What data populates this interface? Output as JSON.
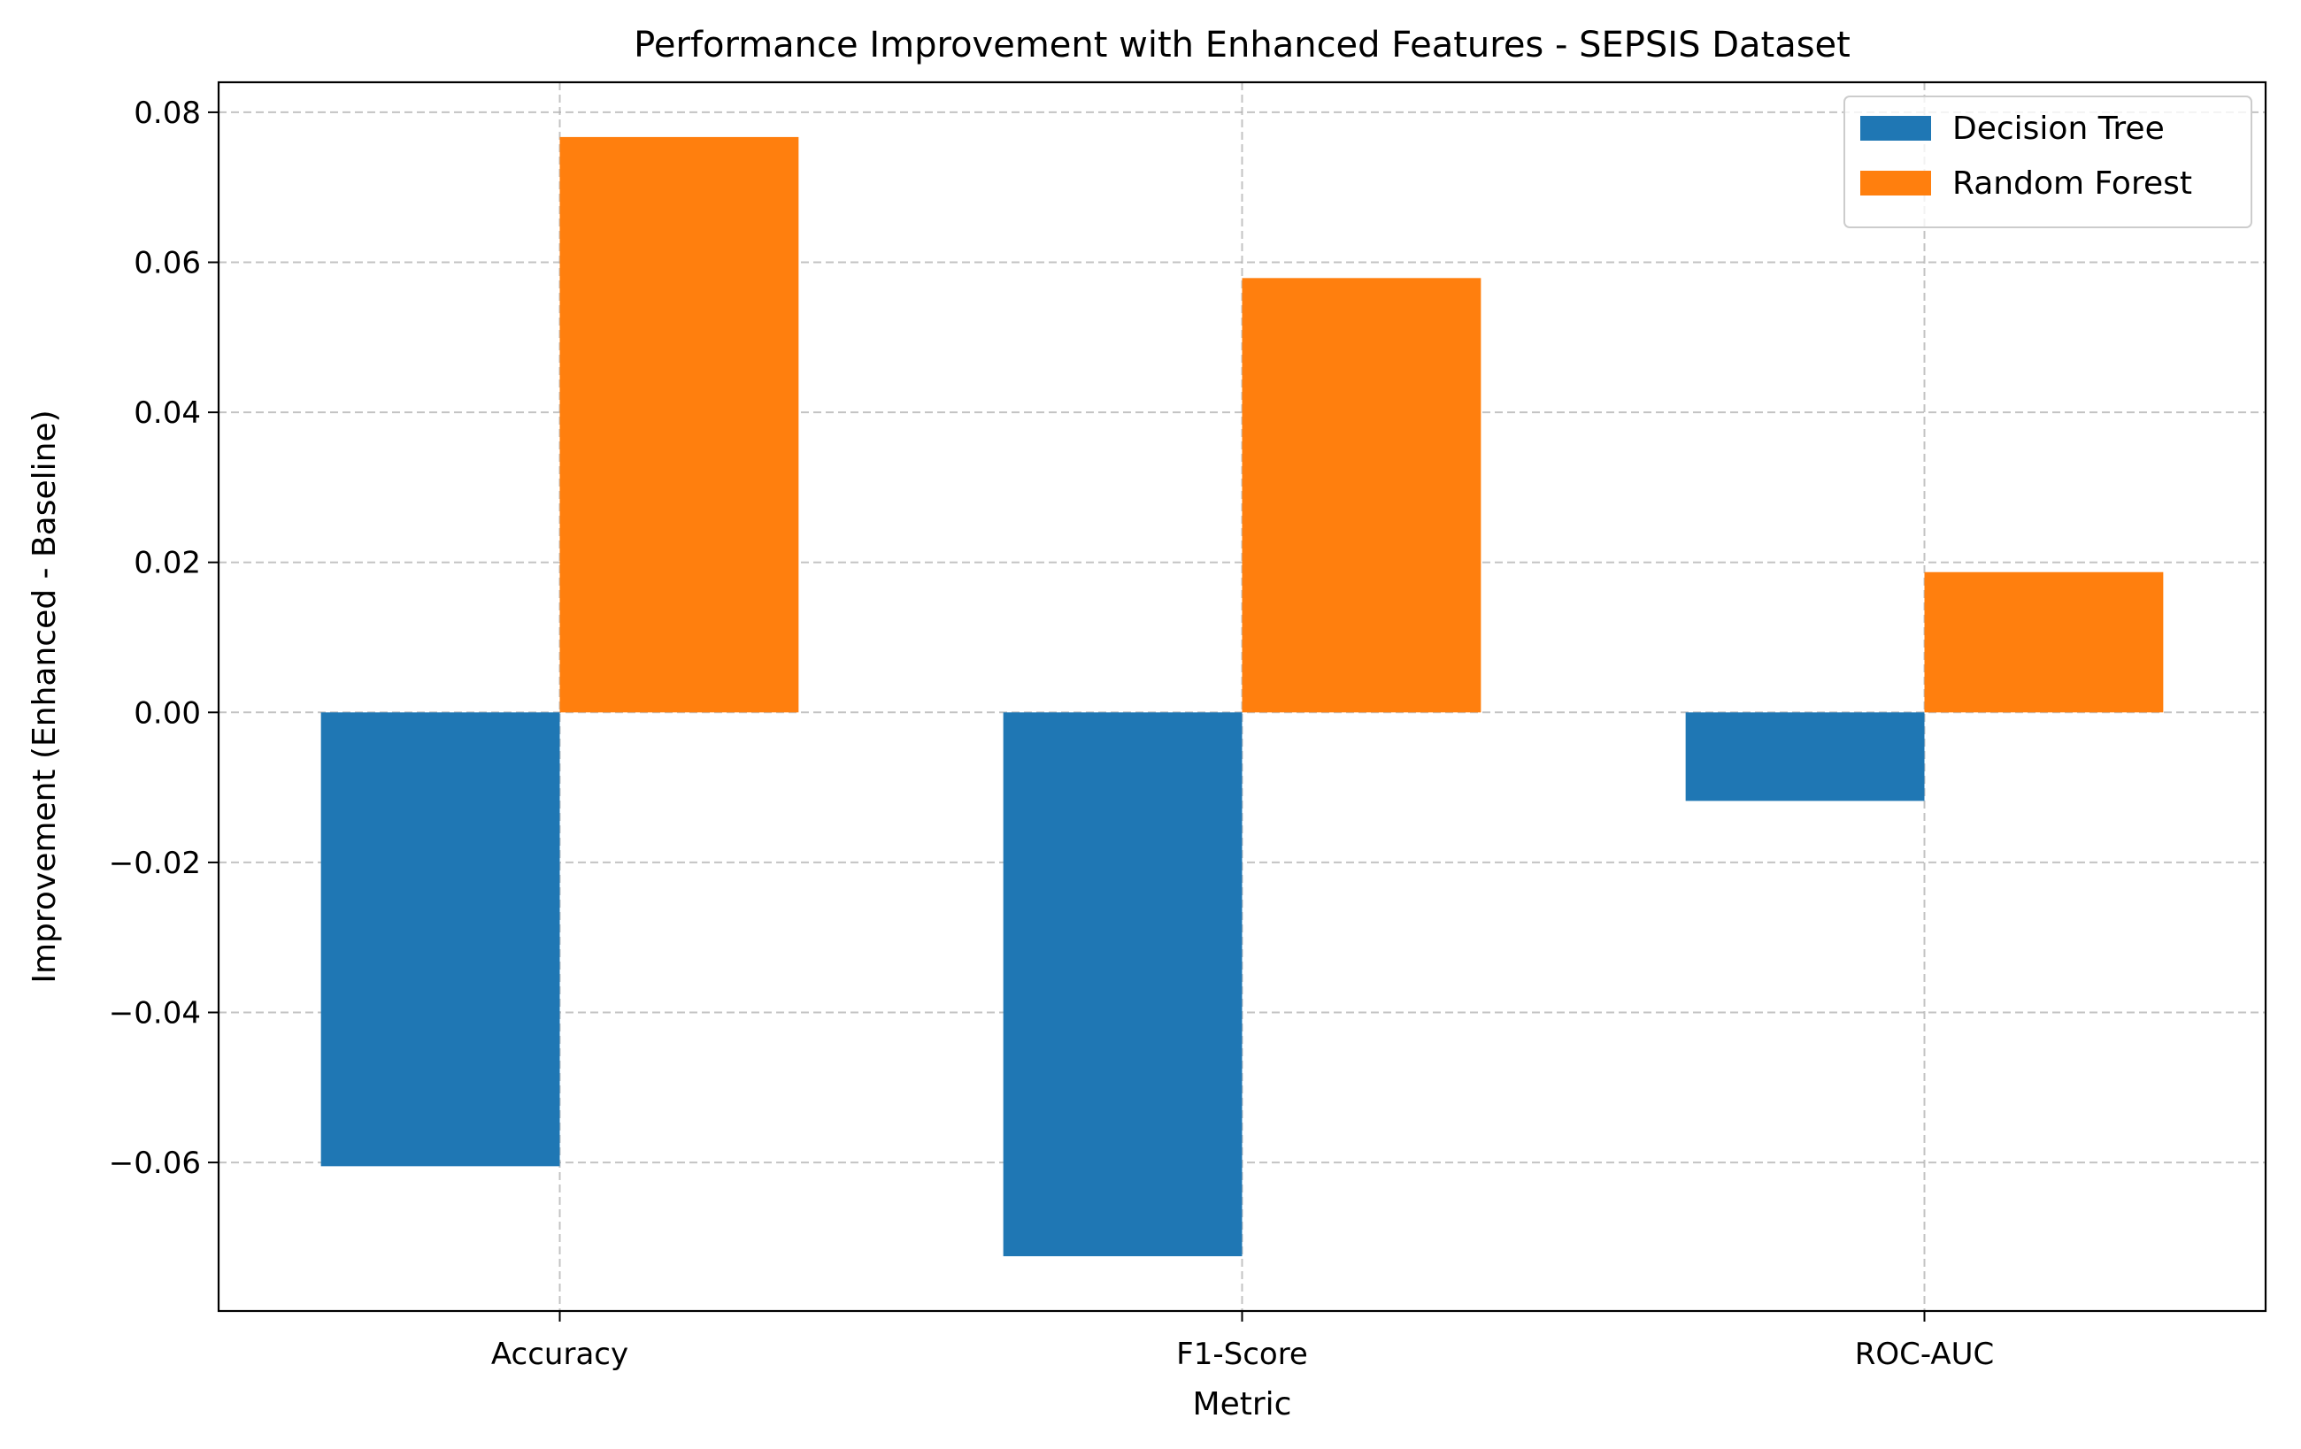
{
  "chart_data": {
    "type": "bar",
    "title": "Performance Improvement with Enhanced Features - SEPSIS Dataset",
    "xlabel": "Metric",
    "ylabel": "Improvement (Enhanced - Baseline)",
    "categories": [
      "Accuracy",
      "F1-Score",
      "ROC-AUC"
    ],
    "series": [
      {
        "name": "Decision Tree",
        "color": "#1f77b4",
        "values": [
          -0.0605,
          -0.0725,
          -0.0118
        ]
      },
      {
        "name": "Random Forest",
        "color": "#ff7f0e",
        "values": [
          0.0767,
          0.0579,
          0.0187
        ]
      }
    ],
    "ylim": [
      -0.0798,
      0.084
    ],
    "yticks": [
      -0.06,
      -0.04,
      -0.02,
      0.0,
      0.02,
      0.04,
      0.06,
      0.08
    ],
    "ytick_labels": [
      "−0.06",
      "−0.04",
      "−0.02",
      "0.00",
      "0.02",
      "0.04",
      "0.06",
      "0.08"
    ],
    "grid": true,
    "legend_position": "top-right"
  }
}
